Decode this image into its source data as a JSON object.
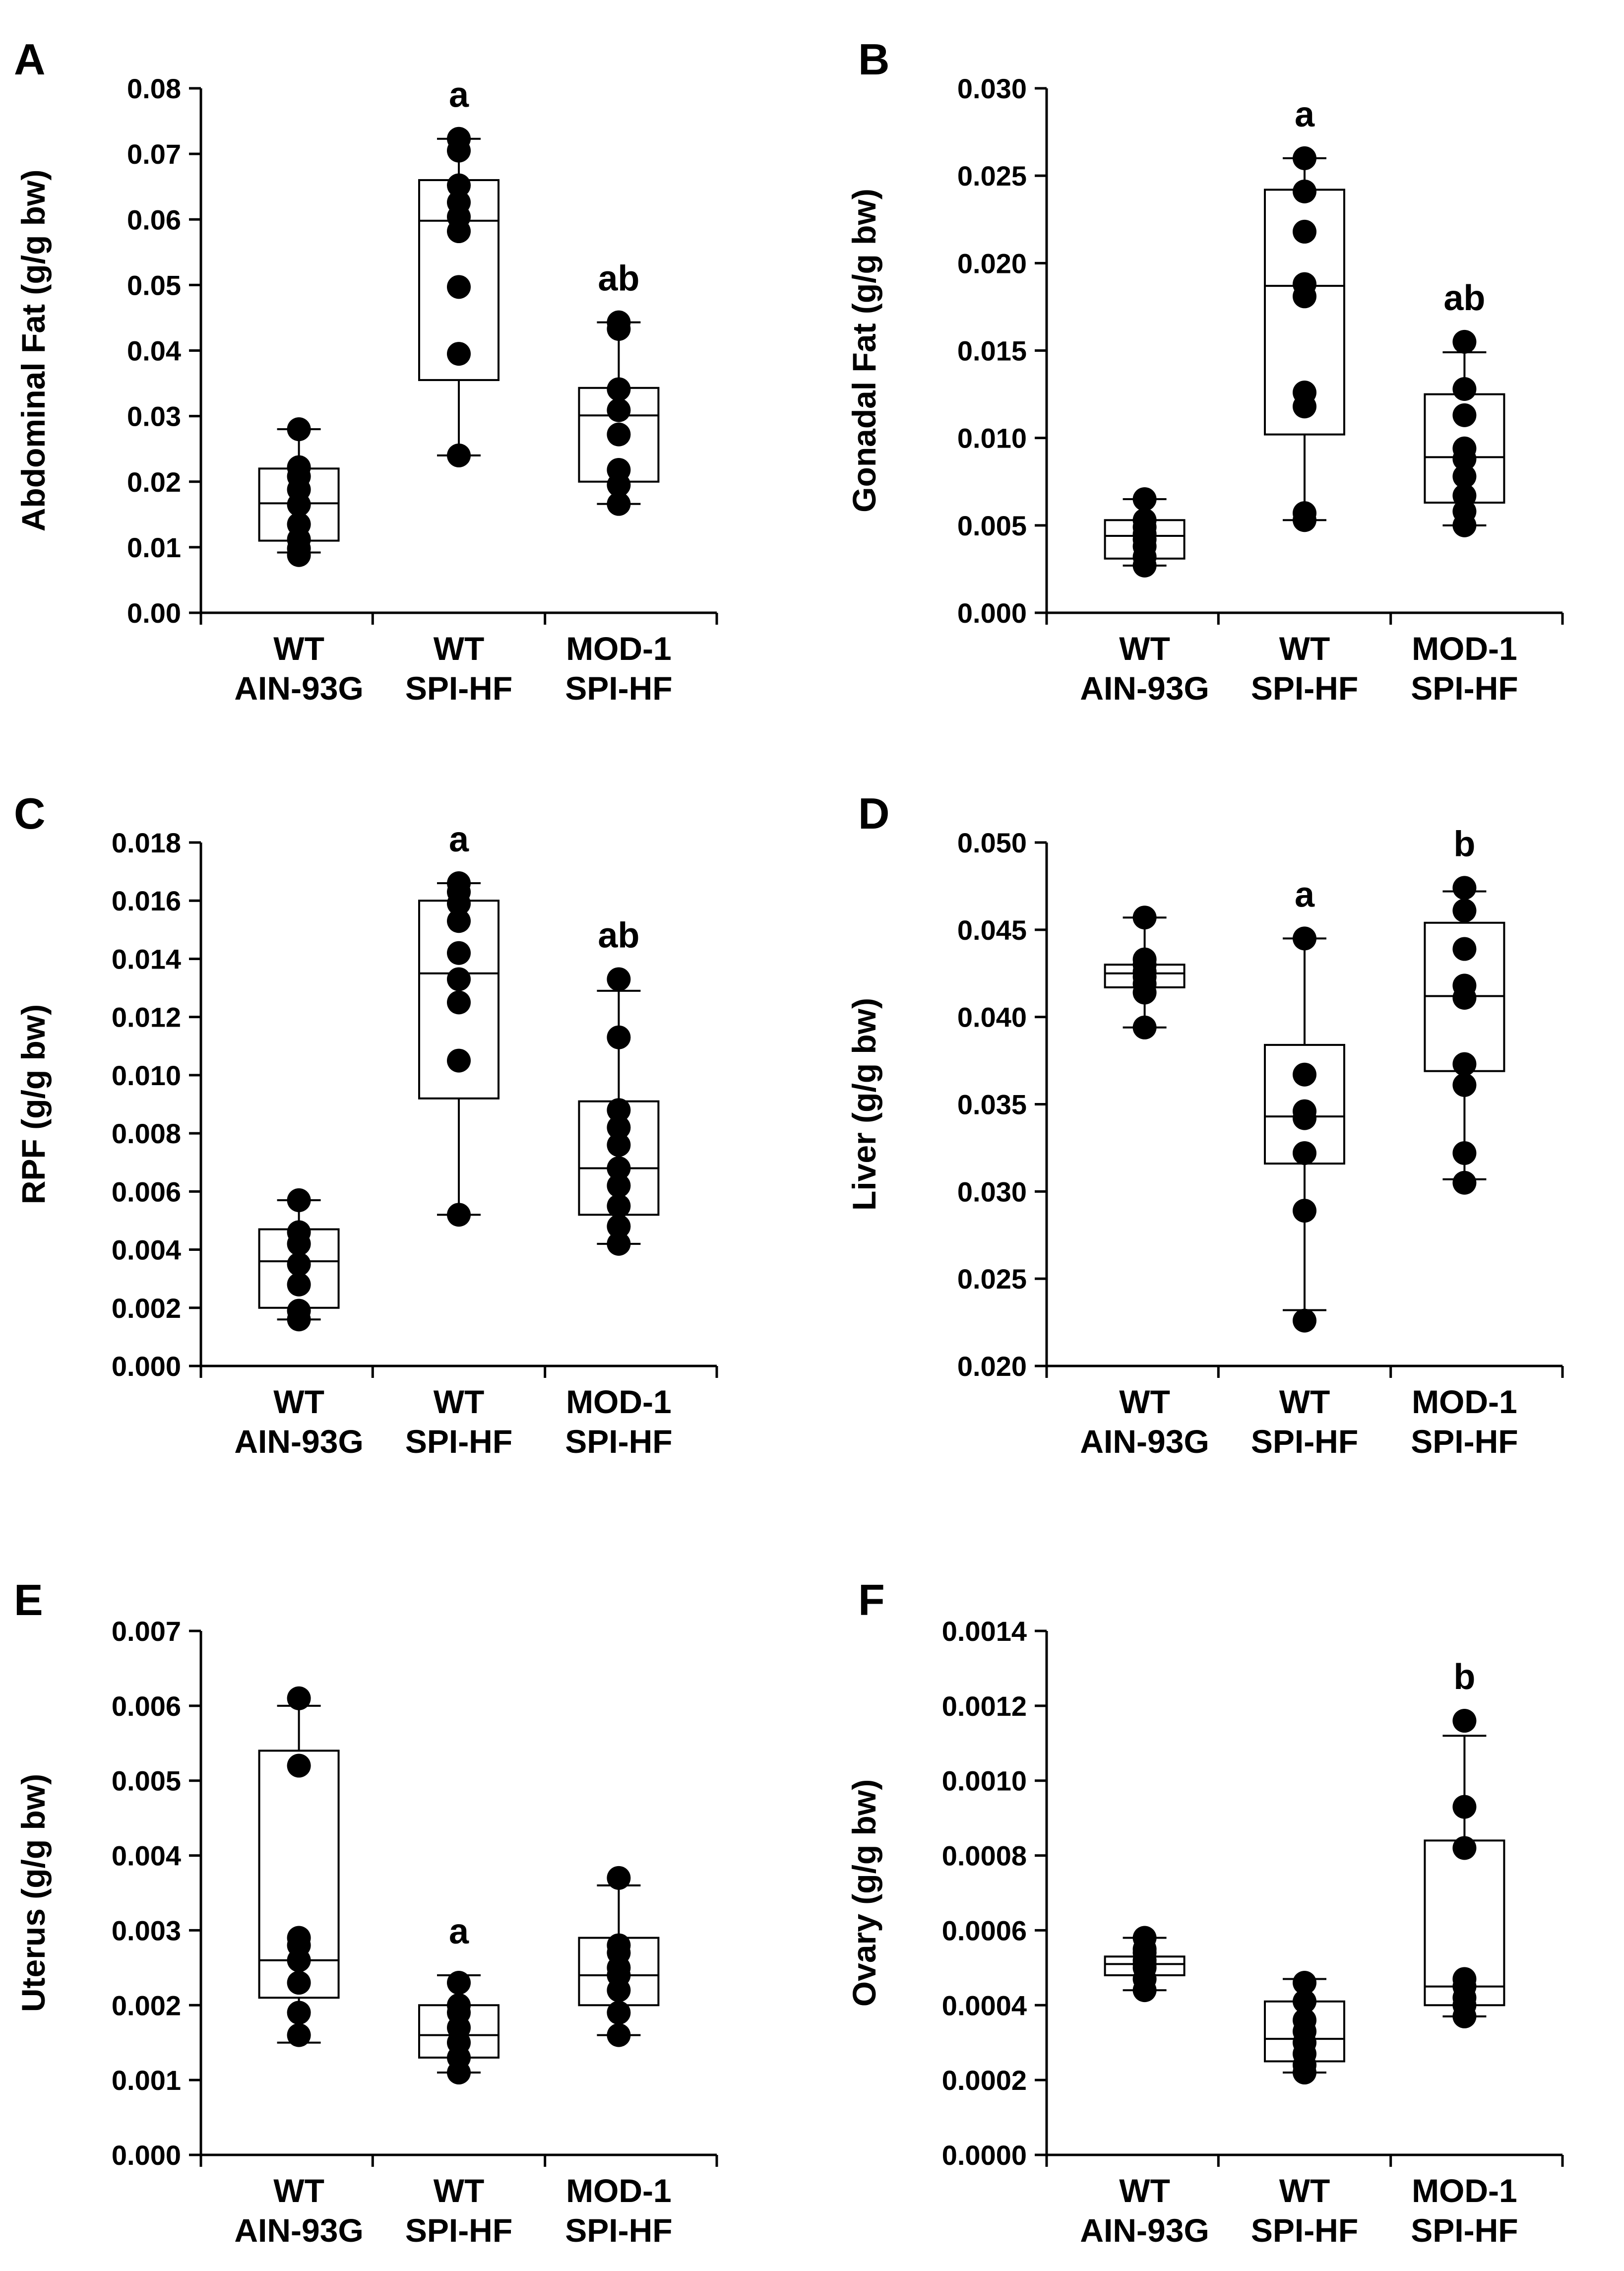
{
  "chart_data": [
    {
      "type": "box",
      "panel": "A",
      "ylabel": "Abdominal Fat  (g/g bw)",
      "ylim": [
        0,
        0.08
      ],
      "yticks": [
        "0.00",
        "0.01",
        "0.02",
        "0.03",
        "0.04",
        "0.05",
        "0.06",
        "0.07",
        "0.08"
      ],
      "categories": [
        [
          "WT",
          "AIN-93G"
        ],
        [
          "WT",
          "SPI-HF"
        ],
        [
          "MOD-1",
          "SPI-HF"
        ]
      ],
      "groups": [
        {
          "q1": 0.011,
          "median": 0.0167,
          "q3": 0.022,
          "whisker_low": 0.0092,
          "whisker_high": 0.028,
          "points": [
            0.0088,
            0.0098,
            0.0112,
            0.0135,
            0.0165,
            0.0188,
            0.0208,
            0.0222,
            0.028
          ],
          "label": ""
        },
        {
          "q1": 0.0355,
          "median": 0.0598,
          "q3": 0.066,
          "whisker_low": 0.024,
          "whisker_high": 0.0723,
          "points": [
            0.024,
            0.0395,
            0.0497,
            0.0582,
            0.0604,
            0.0626,
            0.0652,
            0.0705,
            0.0723
          ],
          "label": "a"
        },
        {
          "q1": 0.02,
          "median": 0.0301,
          "q3": 0.0343,
          "whisker_low": 0.0166,
          "whisker_high": 0.0443,
          "points": [
            0.0166,
            0.0195,
            0.0218,
            0.0272,
            0.0309,
            0.0341,
            0.0433,
            0.0443
          ],
          "label": "ab"
        }
      ]
    },
    {
      "type": "box",
      "panel": "B",
      "ylabel": "Gonadal Fat (g/g bw)",
      "ylim": [
        0,
        0.03
      ],
      "yticks": [
        "0.000",
        "0.005",
        "0.010",
        "0.015",
        "0.020",
        "0.025",
        "0.030"
      ],
      "categories": [
        [
          "WT",
          "AIN-93G"
        ],
        [
          "WT",
          "SPI-HF"
        ],
        [
          "MOD-1",
          "SPI-HF"
        ]
      ],
      "groups": [
        {
          "q1": 0.0031,
          "median": 0.0044,
          "q3": 0.0053,
          "whisker_low": 0.0027,
          "whisker_high": 0.0065,
          "points": [
            0.0027,
            0.0032,
            0.0038,
            0.0042,
            0.0045,
            0.0049,
            0.0053,
            0.0065
          ],
          "label": ""
        },
        {
          "q1": 0.0102,
          "median": 0.0187,
          "q3": 0.0242,
          "whisker_low": 0.0053,
          "whisker_high": 0.026,
          "points": [
            0.0053,
            0.0057,
            0.0118,
            0.0126,
            0.0181,
            0.0188,
            0.0218,
            0.0241,
            0.026
          ],
          "label": "a"
        },
        {
          "q1": 0.0063,
          "median": 0.0089,
          "q3": 0.0125,
          "whisker_low": 0.005,
          "whisker_high": 0.0149,
          "points": [
            0.005,
            0.0058,
            0.0067,
            0.0078,
            0.0088,
            0.0094,
            0.0113,
            0.0128,
            0.0155
          ],
          "label": "ab"
        }
      ]
    },
    {
      "type": "box",
      "panel": "C",
      "ylabel": "RPF (g/g bw)",
      "ylim": [
        0,
        0.018
      ],
      "yticks": [
        "0.000",
        "0.002",
        "0.004",
        "0.006",
        "0.008",
        "0.010",
        "0.012",
        "0.014",
        "0.016",
        "0.018"
      ],
      "categories": [
        [
          "WT",
          "AIN-93G"
        ],
        [
          "WT",
          "SPI-HF"
        ],
        [
          "MOD-1",
          "SPI-HF"
        ]
      ],
      "groups": [
        {
          "q1": 0.002,
          "median": 0.0036,
          "q3": 0.0047,
          "whisker_low": 0.0016,
          "whisker_high": 0.0057,
          "points": [
            0.0016,
            0.0019,
            0.0028,
            0.0035,
            0.0042,
            0.0046,
            0.0057
          ],
          "label": ""
        },
        {
          "q1": 0.0092,
          "median": 0.0135,
          "q3": 0.016,
          "whisker_low": 0.0052,
          "whisker_high": 0.0166,
          "points": [
            0.0052,
            0.0105,
            0.0125,
            0.0133,
            0.0142,
            0.0153,
            0.0159,
            0.0163,
            0.0166
          ],
          "label": "a"
        },
        {
          "q1": 0.0052,
          "median": 0.0068,
          "q3": 0.0091,
          "whisker_low": 0.0042,
          "whisker_high": 0.0129,
          "points": [
            0.0042,
            0.0048,
            0.0055,
            0.0062,
            0.0068,
            0.0076,
            0.0082,
            0.0088,
            0.0113,
            0.0133
          ],
          "label": "ab"
        }
      ]
    },
    {
      "type": "box",
      "panel": "D",
      "ylabel": "Liver (g/g bw)",
      "ylim": [
        0.02,
        0.05
      ],
      "yticks": [
        "0.020",
        "0.025",
        "0.030",
        "0.035",
        "0.040",
        "0.045",
        "0.050"
      ],
      "categories": [
        [
          "WT",
          "AIN-93G"
        ],
        [
          "WT",
          "SPI-HF"
        ],
        [
          "MOD-1",
          "SPI-HF"
        ]
      ],
      "groups": [
        {
          "q1": 0.0417,
          "median": 0.0425,
          "q3": 0.043,
          "whisker_low": 0.0394,
          "whisker_high": 0.0457,
          "points": [
            0.0394,
            0.0414,
            0.0419,
            0.0423,
            0.0426,
            0.043,
            0.0433,
            0.0457
          ],
          "label": ""
        },
        {
          "q1": 0.0316,
          "median": 0.0343,
          "q3": 0.0384,
          "whisker_low": 0.0232,
          "whisker_high": 0.0445,
          "points": [
            0.0226,
            0.0289,
            0.0322,
            0.0342,
            0.0346,
            0.0367,
            0.0445
          ],
          "label": "a"
        },
        {
          "q1": 0.0369,
          "median": 0.0412,
          "q3": 0.0454,
          "whisker_low": 0.0307,
          "whisker_high": 0.0472,
          "points": [
            0.0305,
            0.0322,
            0.0361,
            0.0373,
            0.0411,
            0.0418,
            0.0439,
            0.0461,
            0.0474
          ],
          "label": "b"
        }
      ]
    },
    {
      "type": "box",
      "panel": "E",
      "ylabel": "Uterus (g/g bw)",
      "ylim": [
        0,
        0.007
      ],
      "yticks": [
        "0.000",
        "0.001",
        "0.002",
        "0.003",
        "0.004",
        "0.005",
        "0.006",
        "0.007"
      ],
      "categories": [
        [
          "WT",
          "AIN-93G"
        ],
        [
          "WT",
          "SPI-HF"
        ],
        [
          "MOD-1",
          "SPI-HF"
        ]
      ],
      "groups": [
        {
          "q1": 0.0021,
          "median": 0.0026,
          "q3": 0.0054,
          "whisker_low": 0.0015,
          "whisker_high": 0.006,
          "points": [
            0.0016,
            0.0019,
            0.0023,
            0.0026,
            0.0028,
            0.0029,
            0.0052,
            0.0061
          ],
          "label": ""
        },
        {
          "q1": 0.0013,
          "median": 0.0016,
          "q3": 0.002,
          "whisker_low": 0.0011,
          "whisker_high": 0.0024,
          "points": [
            0.0011,
            0.0013,
            0.0015,
            0.0017,
            0.0019,
            0.002,
            0.0023
          ],
          "label": "a"
        },
        {
          "q1": 0.002,
          "median": 0.0024,
          "q3": 0.0029,
          "whisker_low": 0.0016,
          "whisker_high": 0.0036,
          "points": [
            0.0016,
            0.0019,
            0.0022,
            0.0024,
            0.0025,
            0.0027,
            0.0028,
            0.0037
          ],
          "label": ""
        }
      ]
    },
    {
      "type": "box",
      "panel": "F",
      "ylabel": "Ovary (g/g bw)",
      "ylim": [
        0,
        0.0014
      ],
      "yticks": [
        "0.0000",
        "0.0002",
        "0.0004",
        "0.0006",
        "0.0008",
        "0.0010",
        "0.0012",
        "0.0014"
      ],
      "categories": [
        [
          "WT",
          "AIN-93G"
        ],
        [
          "WT",
          "SPI-HF"
        ],
        [
          "MOD-1",
          "SPI-HF"
        ]
      ],
      "groups": [
        {
          "q1": 0.00048,
          "median": 0.00051,
          "q3": 0.00053,
          "whisker_low": 0.00044,
          "whisker_high": 0.00058,
          "points": [
            0.00044,
            0.00047,
            0.0005,
            0.00051,
            0.00052,
            0.00054,
            0.00055,
            0.00058
          ],
          "label": ""
        },
        {
          "q1": 0.00025,
          "median": 0.00031,
          "q3": 0.00041,
          "whisker_low": 0.00022,
          "whisker_high": 0.00047,
          "points": [
            0.00022,
            0.00024,
            0.00027,
            0.0003,
            0.00033,
            0.00036,
            0.00041,
            0.00046
          ],
          "label": ""
        },
        {
          "q1": 0.0004,
          "median": 0.00045,
          "q3": 0.00084,
          "whisker_low": 0.00037,
          "whisker_high": 0.00112,
          "points": [
            0.00037,
            0.0004,
            0.00042,
            0.00045,
            0.00047,
            0.00082,
            0.00093,
            0.00116
          ],
          "label": "b"
        }
      ]
    }
  ]
}
